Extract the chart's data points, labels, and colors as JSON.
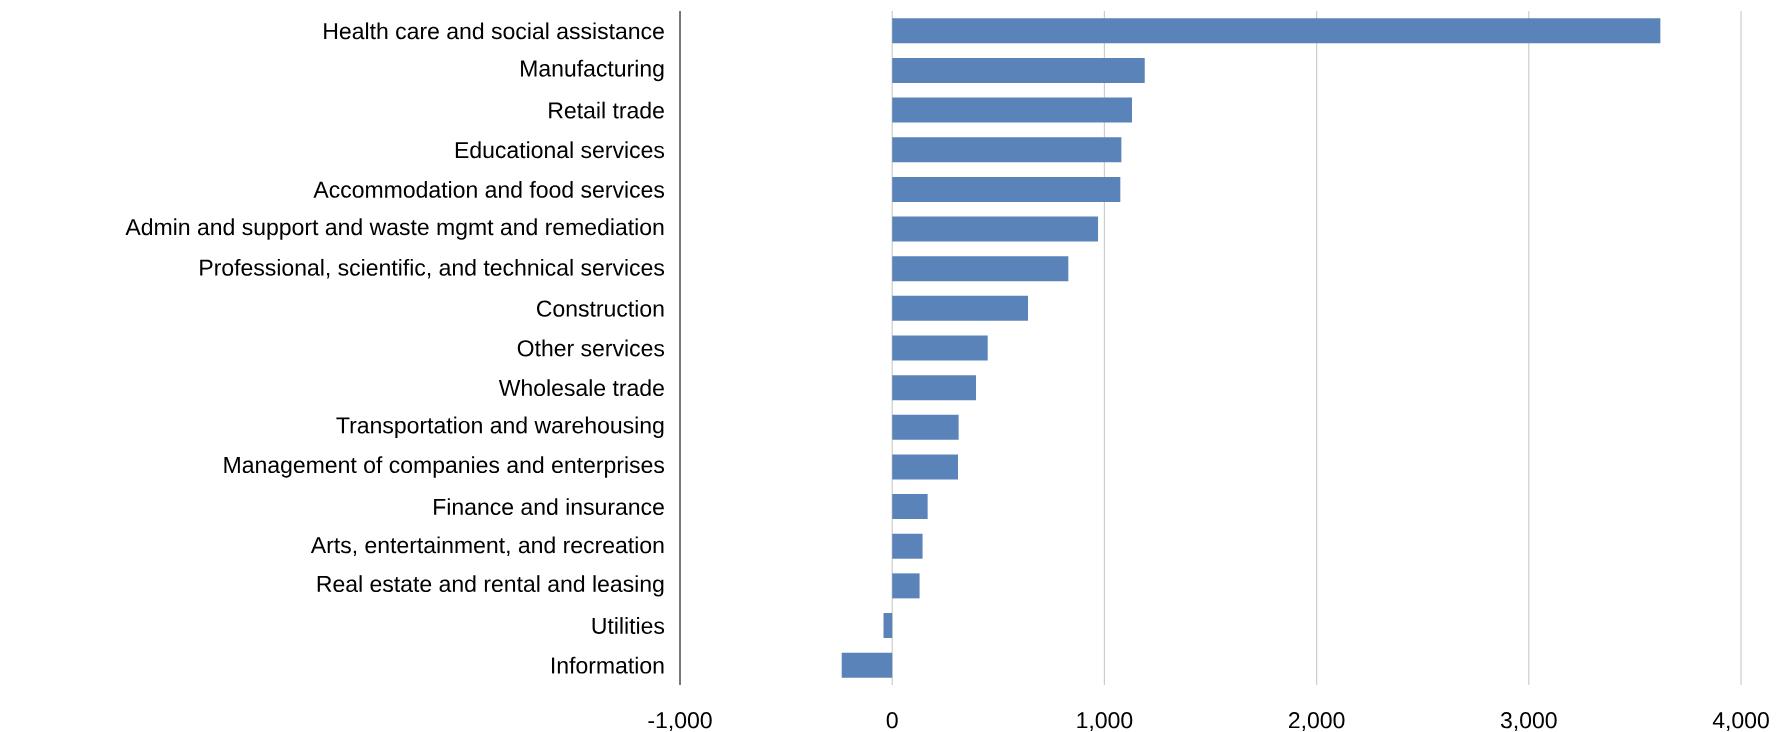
{
  "chart_data": {
    "type": "bar",
    "orientation": "horizontal",
    "grid": "x",
    "color": "#5a83b9",
    "categories": [
      "Health care and social assistance",
      "Manufacturing",
      "Retail trade",
      "Educational services",
      "Accommodation and food services",
      "Admin and support and waste mgmt and remediation",
      "Professional, scientific, and technical services",
      "Construction",
      "Other services",
      "Wholesale trade",
      "Transportation and warehousing",
      "Management of companies and enterprises",
      "Finance and insurance",
      "Arts, entertainment, and recreation",
      "Real estate and rental and leasing",
      "Utilities",
      "Information"
    ],
    "values": [
      3620,
      1190,
      1130,
      1080,
      1075,
      970,
      830,
      640,
      450,
      395,
      313,
      310,
      167,
      143,
      129,
      -41,
      -238
    ],
    "xlim": [
      -1000,
      4000
    ],
    "xticks": [
      {
        "value": -1000,
        "label": "-1,000"
      },
      0,
      {
        "value": 1000,
        "label": "1,000"
      },
      {
        "value": 2000,
        "label": "2,000"
      },
      {
        "value": 3000,
        "label": "3,000"
      },
      {
        "value": 4000,
        "label": "4,000"
      }
    ]
  }
}
